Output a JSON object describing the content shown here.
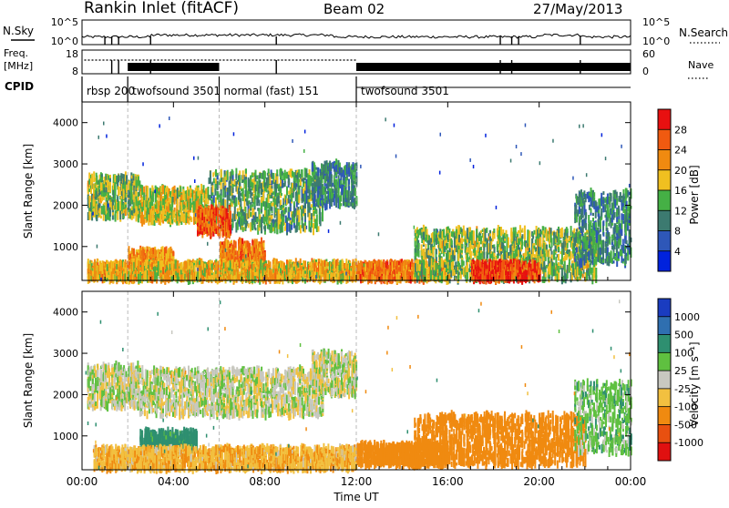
{
  "header": {
    "title": "Rankin Inlet (fitACF)",
    "beam": "Beam 02",
    "date": "27/May/2013"
  },
  "noise_panel": {
    "left_label": "N.Sky",
    "right_label": "N.Search",
    "left_ticks": [
      "10^5",
      "10^0"
    ],
    "right_ticks": [
      "10^5",
      "10^0"
    ]
  },
  "freq_panel": {
    "left_label_line1": "Freq.",
    "left_label_line2": "[MHz]",
    "right_label": "Nave",
    "left_ticks": [
      "18",
      "8"
    ],
    "right_ticks": [
      "60",
      "0"
    ]
  },
  "cpid": {
    "label": "CPID",
    "segments": [
      {
        "name": "rbsp 200",
        "start": 0.0,
        "end": 2.0
      },
      {
        "name": "twofsound 3501",
        "start": 2.0,
        "end": 6.0
      },
      {
        "name": "normal (fast) 151",
        "start": 6.0,
        "end": 12.0
      },
      {
        "name": "twofsound 3501",
        "start": 12.0,
        "end": 24.0
      }
    ]
  },
  "xaxis": {
    "label": "Time UT",
    "ticks": [
      "00:00",
      "04:00",
      "08:00",
      "12:00",
      "16:00",
      "20:00",
      "00:00"
    ]
  },
  "power_panel": {
    "ylabel": "Slant Range [km]",
    "yticks": [
      "1000",
      "2000",
      "3000",
      "4000"
    ],
    "colorbar_label": "Power [dB]",
    "colorbar_ticks": [
      "28",
      "24",
      "20",
      "16",
      "12",
      "8",
      "4"
    ],
    "colors": [
      "#0022dd",
      "#2e57b8",
      "#3c7a70",
      "#45b045",
      "#f0c020",
      "#f08a10",
      "#f05a10",
      "#e81010"
    ]
  },
  "velocity_panel": {
    "ylabel": "Slant Range [km]",
    "yticks": [
      "1000",
      "2000",
      "3000",
      "4000"
    ],
    "colorbar_label": "Velocity [m s⁻¹]",
    "colorbar_ticks": [
      "1000",
      "500",
      "100",
      "25",
      "-25",
      "-100",
      "-500",
      "-1000"
    ],
    "colors": [
      "#1a3cc0",
      "#2f6fb0",
      "#2e8f70",
      "#5fc040",
      "#c8c8c0",
      "#f2c040",
      "#f08a10",
      "#e85010",
      "#e01010"
    ]
  },
  "chart_data": [
    {
      "type": "heatmap",
      "title": "Rankin Inlet (fitACF)",
      "subtitle": "Beam 02",
      "quantity": "Power [dB]",
      "x_range_hours": [
        0,
        24
      ],
      "y_range_km": [
        180,
        4500
      ],
      "color_range": [
        0,
        30
      ],
      "regions": [
        {
          "t0": 0.2,
          "t1": 2.5,
          "r0": 1700,
          "r1": 2700,
          "value": 14
        },
        {
          "t0": 2.5,
          "t1": 5.5,
          "r0": 1600,
          "r1": 2400,
          "value": 16
        },
        {
          "t0": 5.5,
          "t1": 10.5,
          "r0": 1400,
          "r1": 2800,
          "value": 12
        },
        {
          "t0": 10.0,
          "t1": 12.0,
          "r0": 2000,
          "r1": 3000,
          "value": 10
        },
        {
          "t0": 5.0,
          "t1": 6.5,
          "r0": 1300,
          "r1": 1900,
          "value": 24
        },
        {
          "t0": 6.0,
          "t1": 8.0,
          "r0": 600,
          "r1": 1100,
          "value": 22
        },
        {
          "t0": 2.0,
          "t1": 4.0,
          "r0": 500,
          "r1": 900,
          "value": 20
        },
        {
          "t0": 0.2,
          "t1": 12.0,
          "r0": 200,
          "r1": 600,
          "value": 18
        },
        {
          "t0": 12.0,
          "t1": 16.0,
          "r0": 200,
          "r1": 600,
          "value": 22
        },
        {
          "t0": 14.5,
          "t1": 22.5,
          "r0": 200,
          "r1": 1400,
          "value": 14
        },
        {
          "t0": 17.0,
          "t1": 20.0,
          "r0": 200,
          "r1": 600,
          "value": 26
        },
        {
          "t0": 21.5,
          "t1": 24.0,
          "r0": 600,
          "r1": 2300,
          "value": 10
        }
      ]
    },
    {
      "type": "heatmap",
      "title": "Rankin Inlet (fitACF)",
      "subtitle": "Beam 02",
      "quantity": "Velocity [m s^-1]",
      "x_range_hours": [
        0,
        24
      ],
      "y_range_km": [
        180,
        4500
      ],
      "color_range": [
        -1000,
        1000
      ],
      "regions": [
        {
          "t0": 0.2,
          "t1": 2.5,
          "r0": 1700,
          "r1": 2700,
          "value": 0
        },
        {
          "t0": 2.5,
          "t1": 10.5,
          "r0": 1500,
          "r1": 2600,
          "value": 0
        },
        {
          "t0": 10.0,
          "t1": 12.0,
          "r0": 2000,
          "r1": 3000,
          "value": 0
        },
        {
          "t0": 2.5,
          "t1": 5.0,
          "r0": 700,
          "r1": 1100,
          "value": 150
        },
        {
          "t0": 0.5,
          "t1": 12.0,
          "r0": 200,
          "r1": 700,
          "value": -80
        },
        {
          "t0": 12.0,
          "t1": 16.0,
          "r0": 300,
          "r1": 800,
          "value": -300
        },
        {
          "t0": 14.5,
          "t1": 22.0,
          "r0": 300,
          "r1": 1500,
          "value": -200
        },
        {
          "t0": 21.5,
          "t1": 24.0,
          "r0": 600,
          "r1": 2300,
          "value": 60
        }
      ]
    }
  ]
}
